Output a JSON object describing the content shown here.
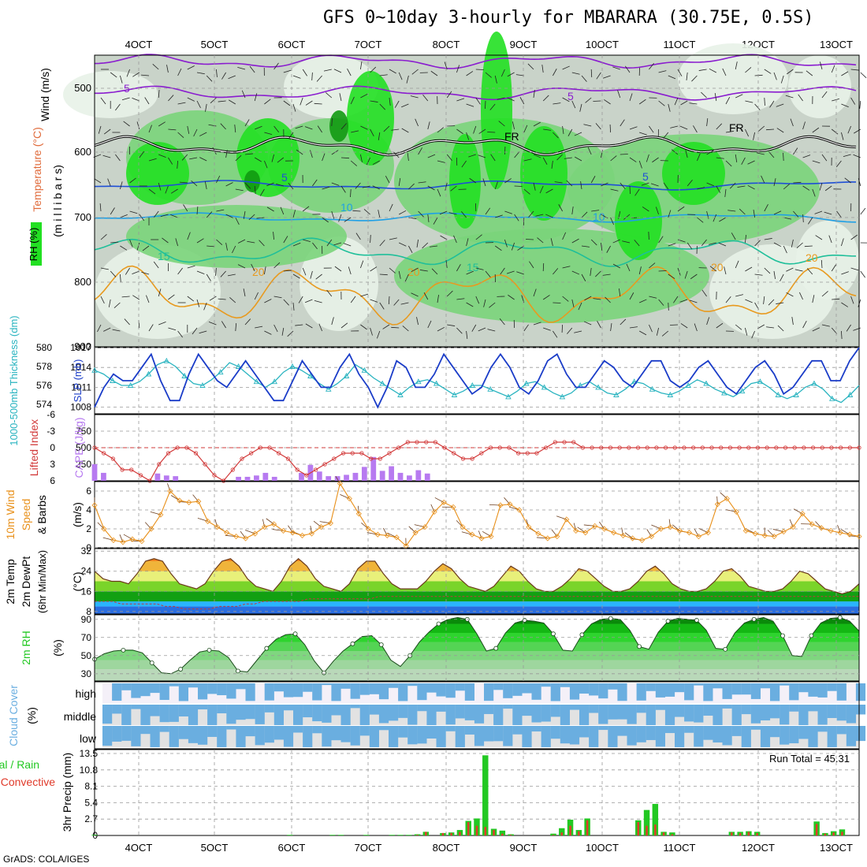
{
  "title": "GFS 0~10day 3-hourly for MBARARA (30.75E, 0.5S)",
  "footer": "GrADS: COLA/IGES",
  "time_axis": {
    "labels": [
      "4OCT",
      "5OCT",
      "6OCT",
      "7OCT",
      "8OCT",
      "9OCT",
      "10OCT",
      "11OCT",
      "12OCT",
      "13OCT"
    ]
  },
  "colors": {
    "rh_light": "#e8f2e8",
    "rh_grey": "#c9d3c9",
    "rh_mid": "#7ad47a",
    "rh_strong": "#22e022",
    "rh_dark": "#119a11",
    "temp_purple": "#8a1ccf",
    "temp_blue": "#1f4fd6",
    "temp_lblue": "#1fa0e6",
    "temp_teal": "#1fbf9a",
    "temp_orange": "#e89a1f",
    "slp": "#1a3cc8",
    "thickness": "#2ab4c0",
    "lifted": "#d23a3a",
    "cape": "#b77af0",
    "wind10": "#e8901a",
    "rain": "#22c822",
    "convective": "#e03a2a",
    "cloud": "#6aaee0"
  },
  "panels": {
    "upper": {
      "ylabel_wind": "Wind (m/s)",
      "ylabel_temp": "Temperature (°C)",
      "ylabel_mb": "(m i l l i b a r s)",
      "ylabel_rh": "RH (%)",
      "y_ticks": [
        "500",
        "600",
        "700",
        "800",
        "900"
      ],
      "contour_labels": [
        {
          "text": "5",
          "color": "temp_purple"
        },
        {
          "text": "5",
          "color": "temp_purple"
        },
        {
          "text": "FR",
          "color": "#000"
        },
        {
          "text": "FR",
          "color": "#000"
        },
        {
          "text": "5",
          "color": "temp_blue"
        },
        {
          "text": "5",
          "color": "temp_blue"
        },
        {
          "text": "10",
          "color": "temp_lblue"
        },
        {
          "text": "10",
          "color": "temp_lblue"
        },
        {
          "text": "15",
          "color": "temp_teal"
        },
        {
          "text": "15",
          "color": "temp_teal"
        },
        {
          "text": "20",
          "color": "temp_orange"
        },
        {
          "text": "20",
          "color": "temp_orange"
        },
        {
          "text": "20",
          "color": "temp_orange"
        },
        {
          "text": "20",
          "color": "temp_orange"
        }
      ]
    },
    "slp": {
      "ylabel_left": "1000-500mb Thickness (dm)",
      "ylabel_right": "SLP (mb)",
      "left_ticks": [
        "580",
        "578",
        "576",
        "574"
      ],
      "right_ticks": [
        "1017",
        "1014",
        "1011",
        "1008"
      ]
    },
    "cape": {
      "ylabel_left": "Lifted Index",
      "ylabel_right": "CAPE (J/kg)",
      "left_ticks": [
        "-6",
        "-3",
        "0",
        "3",
        "6"
      ],
      "right_ticks": [
        "750",
        "500",
        "250"
      ]
    },
    "wind10": {
      "ylabel_a": "10m Wind",
      "ylabel_b": "Speed",
      "ylabel_c": "& Barbs",
      "unit": "(m/s)",
      "ticks": [
        "6",
        "4",
        "2",
        "0"
      ]
    },
    "temp2m": {
      "ylabel_a": "2m Temp",
      "ylabel_b": "2m DewPt",
      "ylabel_c": "(6hr Min/Max)",
      "unit": "(°C)",
      "ticks": [
        "32",
        "24",
        "16",
        "8"
      ]
    },
    "rh2m": {
      "ylabel": "2m RH",
      "unit": "(%)",
      "ticks": [
        "90",
        "70",
        "50",
        "30"
      ]
    },
    "cloud": {
      "ylabel": "Cloud Cover",
      "unit": "(%)",
      "levels": [
        "high",
        "middle",
        "low"
      ]
    },
    "precip": {
      "ylabel_a": "Total / Rain",
      "ylabel_b": "Convective",
      "ylabel_c": "3hr Precip (mm)",
      "ticks": [
        "13.5",
        "10.8",
        "8.1",
        "5.4",
        "2.7",
        "0"
      ],
      "run_total": "Run Total = 45.31"
    }
  },
  "chart_data": [
    {
      "type": "line",
      "name": "sea level pressure and thickness",
      "ylim_left_dm": [
        573,
        580
      ],
      "ylim_right_mb": [
        1007,
        1017
      ],
      "series": [
        {
          "name": "SLP (mb)",
          "values": [
            1008,
            1011,
            1013,
            1012,
            1012,
            1014,
            1016,
            1012,
            1009,
            1009,
            1013,
            1016,
            1014,
            1012,
            1011,
            1013,
            1015,
            1013,
            1011,
            1009,
            1009,
            1012,
            1015,
            1013,
            1011,
            1011,
            1014,
            1016,
            1013,
            1011,
            1008,
            1011,
            1015,
            1014,
            1011,
            1011,
            1013,
            1016,
            1014,
            1012,
            1010,
            1011,
            1014,
            1016,
            1014,
            1011,
            1010,
            1012,
            1015,
            1016,
            1013,
            1011,
            1011,
            1013,
            1015,
            1014,
            1012,
            1011,
            1013,
            1015,
            1015,
            1012,
            1011,
            1012,
            1014,
            1015,
            1013,
            1011,
            1010,
            1012,
            1014,
            1015,
            1013,
            1010,
            1011,
            1013,
            1015,
            1015,
            1012,
            1012,
            1015,
            1017
          ]
        },
        {
          "name": "Thickness (dm)",
          "values": [
            577.6,
            577.2,
            576.5,
            576.0,
            576.0,
            576.4,
            577.2,
            578.2,
            578.6,
            578.0,
            577.0,
            576.2,
            576.0,
            576.6,
            577.4,
            578.4,
            578.0,
            577.2,
            576.4,
            575.8,
            576.4,
            577.4,
            578.0,
            577.6,
            577.0,
            576.2,
            575.6,
            576.2,
            577.0,
            578.2,
            577.6,
            576.8,
            576.2,
            575.6,
            575.0,
            575.8,
            576.4,
            576.6,
            576.2,
            575.6,
            575.0,
            575.4,
            576.0,
            576.0,
            575.6,
            575.2,
            574.8,
            575.4,
            576.2,
            576.4,
            575.8,
            575.2,
            574.8,
            575.2,
            576.0,
            576.4,
            575.8,
            575.2,
            575.0,
            575.6,
            576.4,
            576.2,
            575.6,
            575.2,
            575.0,
            575.4,
            576.0,
            576.6,
            576.2,
            575.6,
            575.2,
            574.8,
            575.4,
            576.2,
            576.4,
            575.8,
            575.0,
            574.6,
            575.0,
            575.8,
            576.2,
            575.6,
            574.6,
            574.2,
            575.0,
            576.0
          ]
        }
      ]
    },
    {
      "type": "bar",
      "name": "CAPE and Lifted Index",
      "ylim_cape": [
        0,
        1000
      ],
      "ylim_li": [
        6,
        -6
      ],
      "series": [
        {
          "name": "CAPE (J/kg)",
          "values": [
            250,
            120,
            0,
            0,
            0,
            0,
            0,
            110,
            80,
            70,
            0,
            0,
            0,
            0,
            0,
            0,
            60,
            60,
            80,
            120,
            60,
            0,
            0,
            120,
            240,
            140,
            70,
            70,
            90,
            120,
            210,
            360,
            150,
            220,
            120,
            80,
            160,
            110,
            0,
            0,
            0,
            0,
            0,
            0,
            0,
            0,
            0,
            0,
            0,
            0,
            0,
            0,
            0,
            0,
            0,
            0,
            0,
            0,
            0,
            0,
            0,
            0,
            0,
            0,
            0,
            0,
            0,
            0,
            0,
            0,
            0,
            0,
            0,
            0,
            0,
            0,
            0,
            0,
            0,
            0,
            0,
            0,
            0,
            0,
            0,
            0
          ]
        },
        {
          "name": "Lifted Index",
          "values": [
            0,
            1,
            2,
            4,
            4,
            5,
            6,
            3,
            1,
            0,
            0,
            1,
            3,
            5,
            6,
            4,
            2,
            1,
            0,
            0,
            1,
            2,
            4,
            5,
            4,
            3,
            2,
            1,
            1,
            1,
            2,
            2,
            1,
            0,
            -1,
            -1,
            -1,
            -1,
            0,
            1,
            2,
            2,
            1,
            0,
            0,
            0,
            1,
            1,
            1,
            0,
            -1,
            -1,
            -1,
            0,
            0,
            0,
            0,
            0,
            0,
            0,
            0,
            0,
            0,
            0,
            0,
            0,
            0,
            0,
            0,
            0,
            0,
            0,
            0,
            0,
            0,
            0,
            0,
            0,
            0,
            0,
            0,
            0,
            0,
            0
          ]
        }
      ]
    },
    {
      "type": "line",
      "name": "10m wind speed",
      "ylim": [
        0,
        7
      ],
      "series": [
        {
          "name": "Speed (m/s)",
          "values": [
            4.5,
            2,
            0.8,
            0.6,
            0.9,
            0.7,
            2,
            3.5,
            6,
            5,
            4.8,
            4.9,
            2.8,
            2.2,
            1.6,
            1.2,
            1,
            1.5,
            2.2,
            2.5,
            1.8,
            1.6,
            1.3,
            1.5,
            2.2,
            2.6,
            6.8,
            5.2,
            3.6,
            2,
            1.4,
            1.3,
            1.1,
            0.2,
            1.6,
            2.2,
            3.8,
            4.8,
            4.3,
            2.2,
            1.4,
            1,
            1.2,
            4.5,
            4.6,
            4,
            2.2,
            1.5,
            1,
            1.2,
            3,
            1.8,
            1.6,
            2.3,
            2,
            1.6,
            1.3,
            1,
            0.8,
            1.2,
            2,
            2.2,
            1.8,
            1.6,
            1.2,
            1.6,
            4.6,
            5.2,
            3.8,
            1.8,
            1.5,
            1.3,
            1.2,
            1.7,
            2.2,
            3.6,
            2.5,
            2.1,
            1.8,
            1.6,
            1.4,
            1.2
          ]
        }
      ]
    },
    {
      "type": "area",
      "name": "2m temperature and dew point",
      "ylim": [
        7,
        33
      ],
      "series": [
        {
          "name": "2m Temp (°C)",
          "values": [
            24,
            21,
            20,
            20,
            19,
            23,
            28,
            29,
            28,
            23,
            19,
            18,
            17,
            19,
            24,
            28,
            29,
            26,
            21,
            18,
            17,
            16,
            20,
            26,
            29,
            26,
            21,
            18,
            17,
            16,
            19,
            25,
            28,
            28,
            23,
            19,
            17,
            17,
            17,
            20,
            24,
            27,
            25,
            21,
            18,
            17,
            16,
            18,
            22,
            26,
            24,
            20,
            17,
            16,
            16,
            18,
            21,
            25,
            24,
            21,
            18,
            16,
            16,
            17,
            20,
            24,
            26,
            23,
            19,
            17,
            16,
            16,
            17,
            20,
            24,
            25,
            22,
            18,
            17,
            16,
            16,
            17,
            20,
            24,
            23,
            20,
            17,
            16,
            15,
            16,
            19
          ]
        },
        {
          "name": "2m DewPt (°C)",
          "values": [
            12,
            12,
            12,
            11,
            11,
            11,
            11,
            11,
            10,
            10,
            9,
            9,
            9,
            9,
            10,
            10,
            10,
            11,
            11,
            12,
            12,
            12,
            12,
            12,
            13,
            13,
            13,
            13,
            13,
            13,
            13,
            13,
            14,
            14,
            14,
            14,
            14,
            14,
            14,
            14,
            14,
            14,
            14,
            14,
            14,
            14,
            14,
            14,
            14,
            14,
            14,
            14,
            14,
            14,
            14,
            14,
            14,
            14,
            14,
            14,
            14,
            14,
            14,
            14,
            14,
            14,
            14,
            14,
            14,
            14,
            14,
            14,
            14,
            14,
            14,
            14,
            14,
            14,
            14,
            14,
            14,
            14,
            14,
            14,
            14,
            14,
            14
          ]
        }
      ]
    },
    {
      "type": "area",
      "name": "2m RH",
      "ylim": [
        22,
        95
      ],
      "series": [
        {
          "name": "2m RH (%)",
          "values": [
            46,
            52,
            55,
            56,
            56,
            53,
            42,
            31,
            30,
            35,
            45,
            54,
            56,
            55,
            48,
            33,
            32,
            45,
            58,
            68,
            73,
            74,
            62,
            44,
            31,
            44,
            55,
            63,
            71,
            72,
            62,
            45,
            38,
            50,
            65,
            76,
            85,
            90,
            92,
            90,
            74,
            55,
            58,
            75,
            86,
            89,
            88,
            86,
            74,
            56,
            55,
            73,
            85,
            90,
            91,
            90,
            78,
            60,
            57,
            76,
            88,
            91,
            90,
            89,
            78,
            58,
            57,
            75,
            86,
            90,
            92,
            88,
            72,
            50,
            49,
            72,
            86,
            91,
            92,
            88,
            77
          ]
        }
      ]
    },
    {
      "type": "bar",
      "name": "3hr precipitation",
      "ylim": [
        0,
        13.5
      ],
      "series": [
        {
          "name": "Total / Rain (mm)",
          "values": [
            0.1,
            0,
            0,
            0,
            0,
            0,
            0,
            0,
            0,
            0,
            0,
            0,
            0,
            0,
            0,
            0,
            0,
            0,
            0,
            0,
            0,
            0,
            0,
            0.1,
            0,
            0,
            0,
            0,
            0.1,
            0.1,
            0,
            0,
            0.1,
            0,
            0,
            0.1,
            0.1,
            0.1,
            0.2,
            0.6,
            0,
            0.4,
            0.5,
            0.9,
            2.4,
            2.8,
            13.2,
            1.1,
            0.8,
            0.2,
            0,
            0,
            0,
            0,
            0.3,
            1.2,
            2.6,
            0.9,
            2.8,
            0,
            0,
            0,
            0,
            0,
            2.5,
            4.2,
            5.2,
            0.6,
            0.5,
            0,
            0,
            0,
            0,
            0,
            0,
            0.6,
            0.6,
            0.7,
            0.6,
            0,
            0,
            0,
            0,
            0,
            0,
            2.3,
            0.4,
            0.7,
            1,
            0,
            0
          ]
        },
        {
          "name": "Convective (mm)",
          "values": [
            0,
            0,
            0,
            0,
            0,
            0,
            0,
            0,
            0,
            0,
            0,
            0,
            0,
            0,
            0,
            0,
            0,
            0,
            0,
            0,
            0,
            0,
            0,
            0,
            0,
            0,
            0,
            0,
            0,
            0,
            0,
            0,
            0,
            0,
            0,
            0,
            0,
            0,
            0.1,
            0.6,
            0,
            0.4,
            0.4,
            0.6,
            2.2,
            1.6,
            1.4,
            0.9,
            0.3,
            0.1,
            0,
            0,
            0,
            0,
            0.1,
            0.5,
            1.6,
            0.7,
            2.5,
            0,
            0,
            0,
            0,
            0,
            2.2,
            1.6,
            1.8,
            0.5,
            0.2,
            0,
            0,
            0,
            0,
            0,
            0,
            0.5,
            0.4,
            0.6,
            0.4,
            0,
            0,
            0,
            0,
            0,
            0,
            1.9,
            0.3,
            0.5,
            0.6,
            0,
            0
          ]
        }
      ]
    }
  ]
}
